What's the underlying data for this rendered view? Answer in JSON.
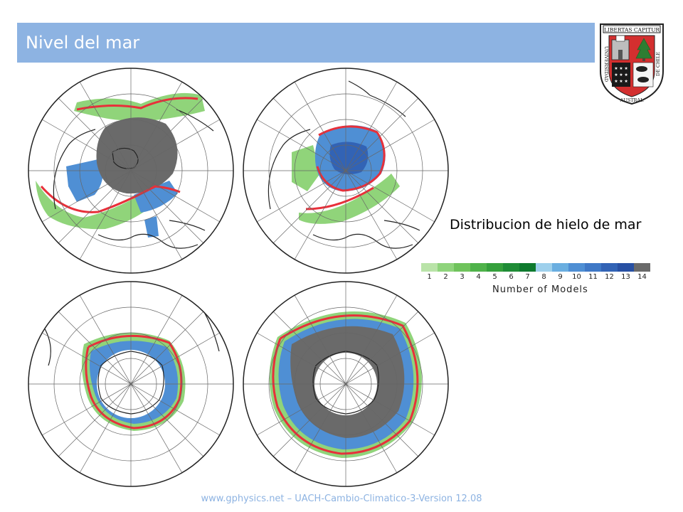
{
  "slide": {
    "title": "Nivel del mar",
    "caption": "Distribucion de hielo de mar",
    "footer": "www.gphysics.net – UACH-Cambio-Climatico-3-Version 12.08"
  },
  "logo": {
    "motto": "LIBERTAS CAPITUR",
    "ring_left": "UNIVERSIDAD",
    "ring_bottom": "AUSTRAL",
    "ring_right": "DE CHILE"
  },
  "legend": {
    "title": "Number of Models",
    "ticks": [
      "1",
      "2",
      "3",
      "4",
      "5",
      "6",
      "7",
      "8",
      "9",
      "10",
      "11",
      "12",
      "13",
      "14"
    ],
    "colors": [
      "#b9e3a8",
      "#8fd47c",
      "#6fc35c",
      "#4fb24a",
      "#35a03c",
      "#1f8c36",
      "#0e7a2e",
      "#9ed0ec",
      "#6aaee0",
      "#4f8fd4",
      "#3f78c6",
      "#3263b5",
      "#2850a3",
      "#6a6a6a"
    ]
  },
  "panels": [
    {
      "id": "arctic-1",
      "region": "north"
    },
    {
      "id": "arctic-2",
      "region": "north"
    },
    {
      "id": "antarctic-1",
      "region": "south"
    },
    {
      "id": "antarctic-2",
      "region": "south"
    }
  ],
  "colors": {
    "title_bar": "#8db3e2",
    "ice_edge": "#e8303a",
    "footer_text": "#8db3e2"
  }
}
